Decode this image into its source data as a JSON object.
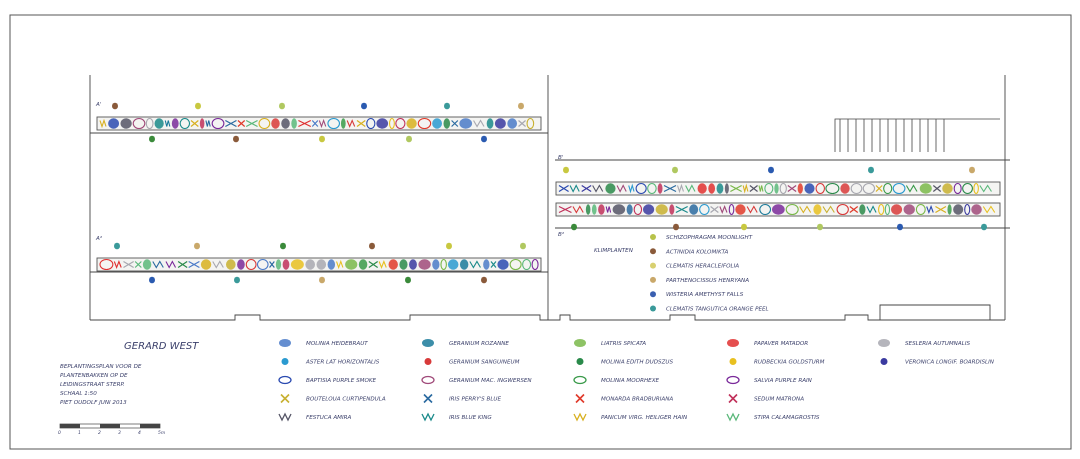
{
  "title": "GERARD WEST",
  "plan_notes": [
    "BEPLANTINGSPLAN VOOR DE",
    "PLANTENBAKKEN OP DE",
    "LEIDINGSTRAAT STERP.",
    "SCHAAL 1:50",
    "PIET OUDOLF   JUNI 2013"
  ],
  "scale_bar": {
    "ticks": [
      "0",
      "1",
      "2",
      "3",
      "4",
      "5m"
    ]
  },
  "beds": {
    "a1": "A'",
    "a2": "A²",
    "b1": "B'",
    "b2": "B²"
  },
  "climbers": {
    "title": "KLIMPLANTEN",
    "items": [
      {
        "label": "SCHIZOPHRAGMA MOONLIGHT",
        "color": "#b7c24a"
      },
      {
        "label": "ACTINIDIA KOLOMIKTA",
        "color": "#8a5a3a"
      },
      {
        "label": "CLEMATIS HERACLEIFOLIA",
        "color": "#d8d070"
      },
      {
        "label": "PARTHENOCISSUS HENRYANA",
        "color": "#c9a86a"
      },
      {
        "label": "WISTERIA AMETHYST FALLS",
        "color": "#3a5fb0"
      },
      {
        "label": "CLEMATIS TANGUTICA ORANGE PEEL",
        "color": "#3a9a9a"
      }
    ]
  },
  "legend": [
    {
      "icon": "molinia-heidebraut-icon",
      "label": "MOLINIA HEIDEBRAUT",
      "color": "#4a7ac8"
    },
    {
      "icon": "aster-icon",
      "label": "ASTER LAT HORIZONTALIS",
      "color": "#2a9ad0"
    },
    {
      "icon": "baptisia-icon",
      "label": "BAPTISIA PURPLE SMOKE",
      "color": "#2a4ab0"
    },
    {
      "icon": "bouteloua-icon",
      "label": "BOUTELOUA CURTIPENDULA",
      "color": "#c8b030"
    },
    {
      "icon": "festuca-icon",
      "label": "FESTUCA AMIRA",
      "color": "#555566"
    },
    {
      "icon": "geranium-rozanne-icon",
      "label": "GERANIUM ROZANNE",
      "color": "#1a7a9a"
    },
    {
      "icon": "geranium-sanguineum-icon",
      "label": "GERANIUM SANGUINEUM",
      "color": "#d83a3a"
    },
    {
      "icon": "geranium-ingwersen-icon",
      "label": "GERANIUM MAC. INGWERSEN",
      "color": "#a04a7a"
    },
    {
      "icon": "iris-perrys-icon",
      "label": "IRIS PERRY'S BLUE",
      "color": "#2a6aa0"
    },
    {
      "icon": "iris-blue-icon",
      "label": "IRIS BLUE KING",
      "color": "#1a8a8a"
    },
    {
      "icon": "liatris-icon",
      "label": "LIATRIS SPICATA",
      "color": "#7ab84a"
    },
    {
      "icon": "molinia-edith-icon",
      "label": "MOLINIA EDITH DUDSZUS",
      "color": "#2a8a4a"
    },
    {
      "icon": "molinia-moorhexe-icon",
      "label": "MOLINIA MOORHEXE",
      "color": "#3a9a4a"
    },
    {
      "icon": "monarda-icon",
      "label": "MONARDA BRADBURIANA",
      "color": "#e03a2a"
    },
    {
      "icon": "panicum-icon",
      "label": "PANICUM VIRG. HEILIGER HAIN",
      "color": "#d8b020"
    },
    {
      "icon": "papaver-icon",
      "label": "PAPAVER MATADOR",
      "color": "#e03030"
    },
    {
      "icon": "rudbeckia-icon",
      "label": "RUDBECKIA GOLDSTURM",
      "color": "#e8c020"
    },
    {
      "icon": "salvia-icon",
      "label": "SALVIA PURPLE RAIN",
      "color": "#7a2a9a"
    },
    {
      "icon": "sedum-icon",
      "label": "SEDUM MATRONA",
      "color": "#c0305a"
    },
    {
      "icon": "stipa-icon",
      "label": "STIPA CALAMAGROSTIS",
      "color": "#5ab87a"
    },
    {
      "icon": "sesleria-icon",
      "label": "SESLERIA AUTUMNALIS",
      "color": "#a8a8b0"
    },
    {
      "icon": "veronica-icon",
      "label": "VERONICA LONGIF. BOARDISLIN",
      "color": "#3a3aa0"
    }
  ],
  "tree_colors": {
    "bed_a1_top": [
      "#8a5a3a",
      "#c8c840",
      "#b0c860",
      "#2a5ab0",
      "#c8c840",
      "#a06a40"
    ]
  }
}
